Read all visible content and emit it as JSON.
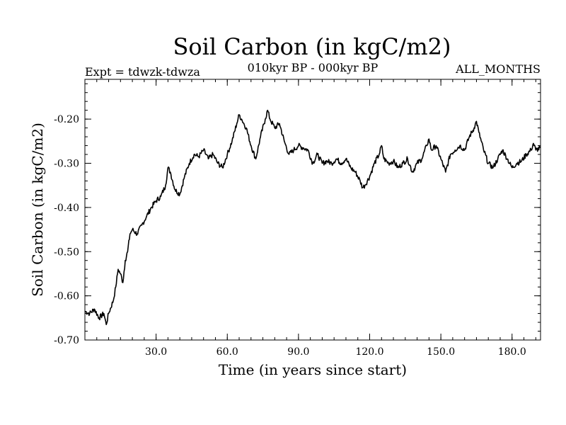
{
  "chart_data": {
    "type": "line",
    "title": "Soil Carbon (in kgC/m2)",
    "subtitle_left": "Expt = tdwzk-tdwza",
    "subtitle_center": "010kyr BP - 000kyr BP",
    "subtitle_right": "ALL_MONTHS",
    "xlabel": "Time (in years since start)",
    "ylabel": "Soil Carbon (in kgC/m2)",
    "xlim": [
      0,
      192
    ],
    "ylim": [
      -0.7,
      -0.11
    ],
    "xticks": [
      30,
      60,
      90,
      120,
      150,
      180
    ],
    "xtick_labels": [
      "30.0",
      "60.0",
      "90.0",
      "120.0",
      "150.0",
      "180.0"
    ],
    "yticks": [
      -0.7,
      -0.6,
      -0.5,
      -0.4,
      -0.3,
      -0.2
    ],
    "ytick_labels": [
      "-0.70",
      "-0.60",
      "-0.50",
      "-0.40",
      "-0.30",
      "-0.20"
    ],
    "grid": false,
    "series": [
      {
        "name": "Soil Carbon",
        "x": [
          0,
          2,
          4,
          6,
          8,
          9,
          10,
          12,
          13,
          14,
          15,
          16,
          17,
          18,
          19,
          20,
          22,
          24,
          26,
          28,
          30,
          32,
          34,
          35,
          36,
          38,
          40,
          42,
          44,
          46,
          48,
          50,
          52,
          54,
          56,
          58,
          60,
          62,
          64,
          65,
          66,
          68,
          70,
          72,
          74,
          76,
          77,
          78,
          80,
          82,
          84,
          86,
          88,
          90,
          92,
          94,
          96,
          98,
          100,
          102,
          104,
          106,
          108,
          110,
          112,
          114,
          116,
          117,
          118,
          120,
          122,
          124,
          125,
          126,
          128,
          130,
          132,
          134,
          136,
          138,
          140,
          142,
          144,
          145,
          146,
          148,
          150,
          152,
          154,
          156,
          158,
          160,
          162,
          164,
          165,
          166,
          168,
          170,
          172,
          174,
          176,
          178,
          180,
          182,
          184,
          186,
          188,
          189,
          190,
          192
        ],
        "y": [
          -0.635,
          -0.64,
          -0.63,
          -0.65,
          -0.64,
          -0.665,
          -0.64,
          -0.61,
          -0.58,
          -0.54,
          -0.55,
          -0.57,
          -0.52,
          -0.5,
          -0.46,
          -0.45,
          -0.46,
          -0.44,
          -0.42,
          -0.4,
          -0.385,
          -0.375,
          -0.35,
          -0.31,
          -0.32,
          -0.36,
          -0.37,
          -0.33,
          -0.3,
          -0.28,
          -0.285,
          -0.27,
          -0.29,
          -0.28,
          -0.3,
          -0.31,
          -0.28,
          -0.25,
          -0.21,
          -0.19,
          -0.2,
          -0.22,
          -0.26,
          -0.29,
          -0.24,
          -0.2,
          -0.18,
          -0.2,
          -0.22,
          -0.21,
          -0.25,
          -0.28,
          -0.27,
          -0.26,
          -0.265,
          -0.27,
          -0.3,
          -0.28,
          -0.3,
          -0.295,
          -0.3,
          -0.29,
          -0.3,
          -0.29,
          -0.31,
          -0.32,
          -0.34,
          -0.355,
          -0.35,
          -0.33,
          -0.3,
          -0.28,
          -0.26,
          -0.29,
          -0.3,
          -0.295,
          -0.31,
          -0.3,
          -0.29,
          -0.32,
          -0.3,
          -0.29,
          -0.26,
          -0.245,
          -0.27,
          -0.26,
          -0.29,
          -0.32,
          -0.28,
          -0.27,
          -0.26,
          -0.27,
          -0.24,
          -0.22,
          -0.205,
          -0.23,
          -0.27,
          -0.3,
          -0.31,
          -0.29,
          -0.27,
          -0.29,
          -0.31,
          -0.3,
          -0.295,
          -0.28,
          -0.27,
          -0.255,
          -0.27,
          -0.265
        ]
      }
    ]
  }
}
